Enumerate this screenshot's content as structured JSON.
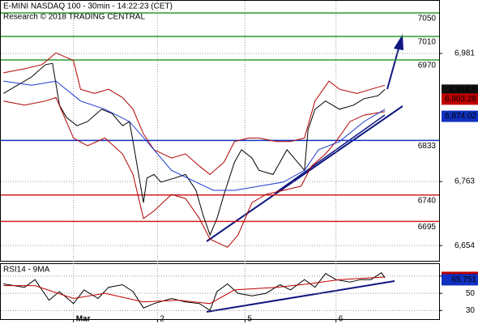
{
  "chart_data": [
    {
      "type": "line",
      "title": "E-MINI NASDAQ 100 - 30min - 14:22:23 (CET)",
      "subtitle": "Research © 2018 TRADING CENTRAL",
      "xlim": [
        0,
        125
      ],
      "xticks": [
        {
          "value": 21,
          "label": "Mar"
        },
        {
          "value": 45,
          "label": "2"
        },
        {
          "value": 70,
          "label": "5"
        },
        {
          "value": 96,
          "label": "6"
        }
      ],
      "ylim": [
        6628,
        7072
      ],
      "yticks": [
        {
          "value": 6981,
          "label": "6,981"
        },
        {
          "value": 6763,
          "label": "6,763"
        },
        {
          "value": 6654,
          "label": "6,654"
        }
      ],
      "grid": true,
      "series": [
        {
          "color": "#000000",
          "x": [
            1,
            5,
            9,
            13,
            15,
            17,
            19,
            22,
            25,
            29,
            32,
            35,
            37,
            38,
            41,
            42,
            44,
            46,
            50,
            53,
            56,
            58,
            60,
            62,
            64,
            67,
            69,
            72,
            74,
            78,
            80,
            82,
            84,
            87,
            88,
            90,
            93,
            95,
            97,
            101,
            104,
            108,
            110
          ],
          "values": [
            6913,
            6927,
            6941,
            6962,
            6964,
            6893,
            6872,
            6858,
            6865,
            6886,
            6879,
            6858,
            6865,
            6831,
            6727,
            6769,
            6775,
            6762,
            6769,
            6775,
            6748,
            6706,
            6672,
            6700,
            6741,
            6796,
            6817,
            6803,
            6782,
            6775,
            6796,
            6817,
            6803,
            6782,
            6851,
            6886,
            6900,
            6893,
            6886,
            6893,
            6904,
            6909,
            6920
          ]
        },
        {
          "color": "#b00000",
          "x": [
            1,
            7,
            12,
            16,
            21,
            23,
            27,
            31,
            35,
            38,
            41,
            44,
            49,
            53,
            57,
            60,
            64,
            67,
            71,
            74,
            79,
            83,
            87,
            90,
            94,
            97,
            102,
            106,
            110
          ],
          "values": [
            6948,
            6955,
            6962,
            6982,
            6969,
            6920,
            6913,
            6920,
            6906,
            6886,
            6844,
            6817,
            6803,
            6810,
            6789,
            6775,
            6796,
            6831,
            6837,
            6837,
            6831,
            6831,
            6837,
            6900,
            6934,
            6920,
            6913,
            6920,
            6927
          ]
        },
        {
          "color": "#b00000",
          "x": [
            1,
            7,
            13,
            16,
            21,
            25,
            30,
            35,
            38,
            41,
            44,
            49,
            53,
            57,
            60,
            65,
            68,
            72,
            76,
            81,
            86,
            89,
            93,
            96,
            100,
            104,
            110
          ],
          "values": [
            6900,
            6893,
            6900,
            6906,
            6837,
            6824,
            6837,
            6810,
            6775,
            6700,
            6713,
            6741,
            6734,
            6700,
            6665,
            6651,
            6672,
            6727,
            6741,
            6748,
            6755,
            6789,
            6810,
            6831,
            6865,
            6876,
            6882
          ]
        },
        {
          "color": "#1a3ad0",
          "x": [
            1,
            9,
            16,
            23,
            30,
            37,
            42,
            49,
            56,
            61,
            67,
            74,
            81,
            87,
            91,
            97,
            104,
            110
          ],
          "values": [
            6934,
            6927,
            6934,
            6900,
            6886,
            6865,
            6831,
            6782,
            6762,
            6748,
            6748,
            6755,
            6762,
            6782,
            6817,
            6831,
            6865,
            6886
          ]
        }
      ],
      "levels": [
        {
          "value": 7050,
          "color": "#2e9a2e"
        },
        {
          "value": 7010,
          "color": "#2e9a2e"
        },
        {
          "value": 6970,
          "color": "#2e9a2e"
        },
        {
          "value": 6833,
          "color": "#1030c0"
        },
        {
          "value": 6740,
          "color": "#d02020"
        },
        {
          "value": 6695,
          "color": "#d02020"
        }
      ],
      "price_tags": [
        {
          "value": 6918.5,
          "label": "6,918.5",
          "color": "#111111"
        },
        {
          "value": 6903.28,
          "label": "6,903.28",
          "color": "#c00000"
        },
        {
          "value": 6874.02,
          "label": "6,874.02",
          "color": "#1030c0"
        }
      ]
    },
    {
      "type": "line",
      "title": "RSI14 - 9MA",
      "xlim": [
        0,
        125
      ],
      "ylim": [
        19,
        85
      ],
      "yticks": [
        70,
        50,
        30
      ],
      "grid": true,
      "series": [
        {
          "color": "#000000",
          "x": [
            1,
            7,
            10,
            14,
            17,
            21,
            24,
            28,
            31,
            35,
            38,
            41,
            44,
            49,
            53,
            57,
            60,
            62,
            65,
            68,
            72,
            76,
            80,
            83,
            87,
            90,
            93,
            96,
            100,
            103,
            106,
            109,
            110
          ],
          "values": [
            61,
            57,
            66,
            42,
            52,
            38,
            54,
            44,
            57,
            60,
            52,
            33,
            38,
            44,
            40,
            38,
            30,
            52,
            61,
            50,
            47,
            50,
            60,
            54,
            66,
            57,
            73,
            66,
            63,
            66,
            66,
            74,
            68
          ]
        },
        {
          "color": "#c00000",
          "x": [
            1,
            10,
            21,
            30,
            41,
            51,
            60,
            67,
            79,
            88,
            97,
            110
          ],
          "values": [
            59,
            59,
            44,
            50,
            40,
            42,
            38,
            54,
            57,
            61,
            66,
            69
          ]
        }
      ],
      "price_tags": [
        {
          "value": 68.5697,
          "label": "68.5697",
          "color": "#c00000"
        },
        {
          "value": 65.751,
          "label": "65.751",
          "color": "#1030c0"
        }
      ]
    }
  ]
}
